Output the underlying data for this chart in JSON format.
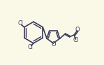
{
  "bg_color": "#faf9e8",
  "bond_color": "#3a3a5a",
  "atom_color": "#3a3a5a",
  "line_width": 1.2,
  "font_size_cl": 5.8,
  "font_size_o": 6.0,
  "xlim": [
    0.0,
    1.0
  ],
  "ylim": [
    0.0,
    1.0
  ]
}
